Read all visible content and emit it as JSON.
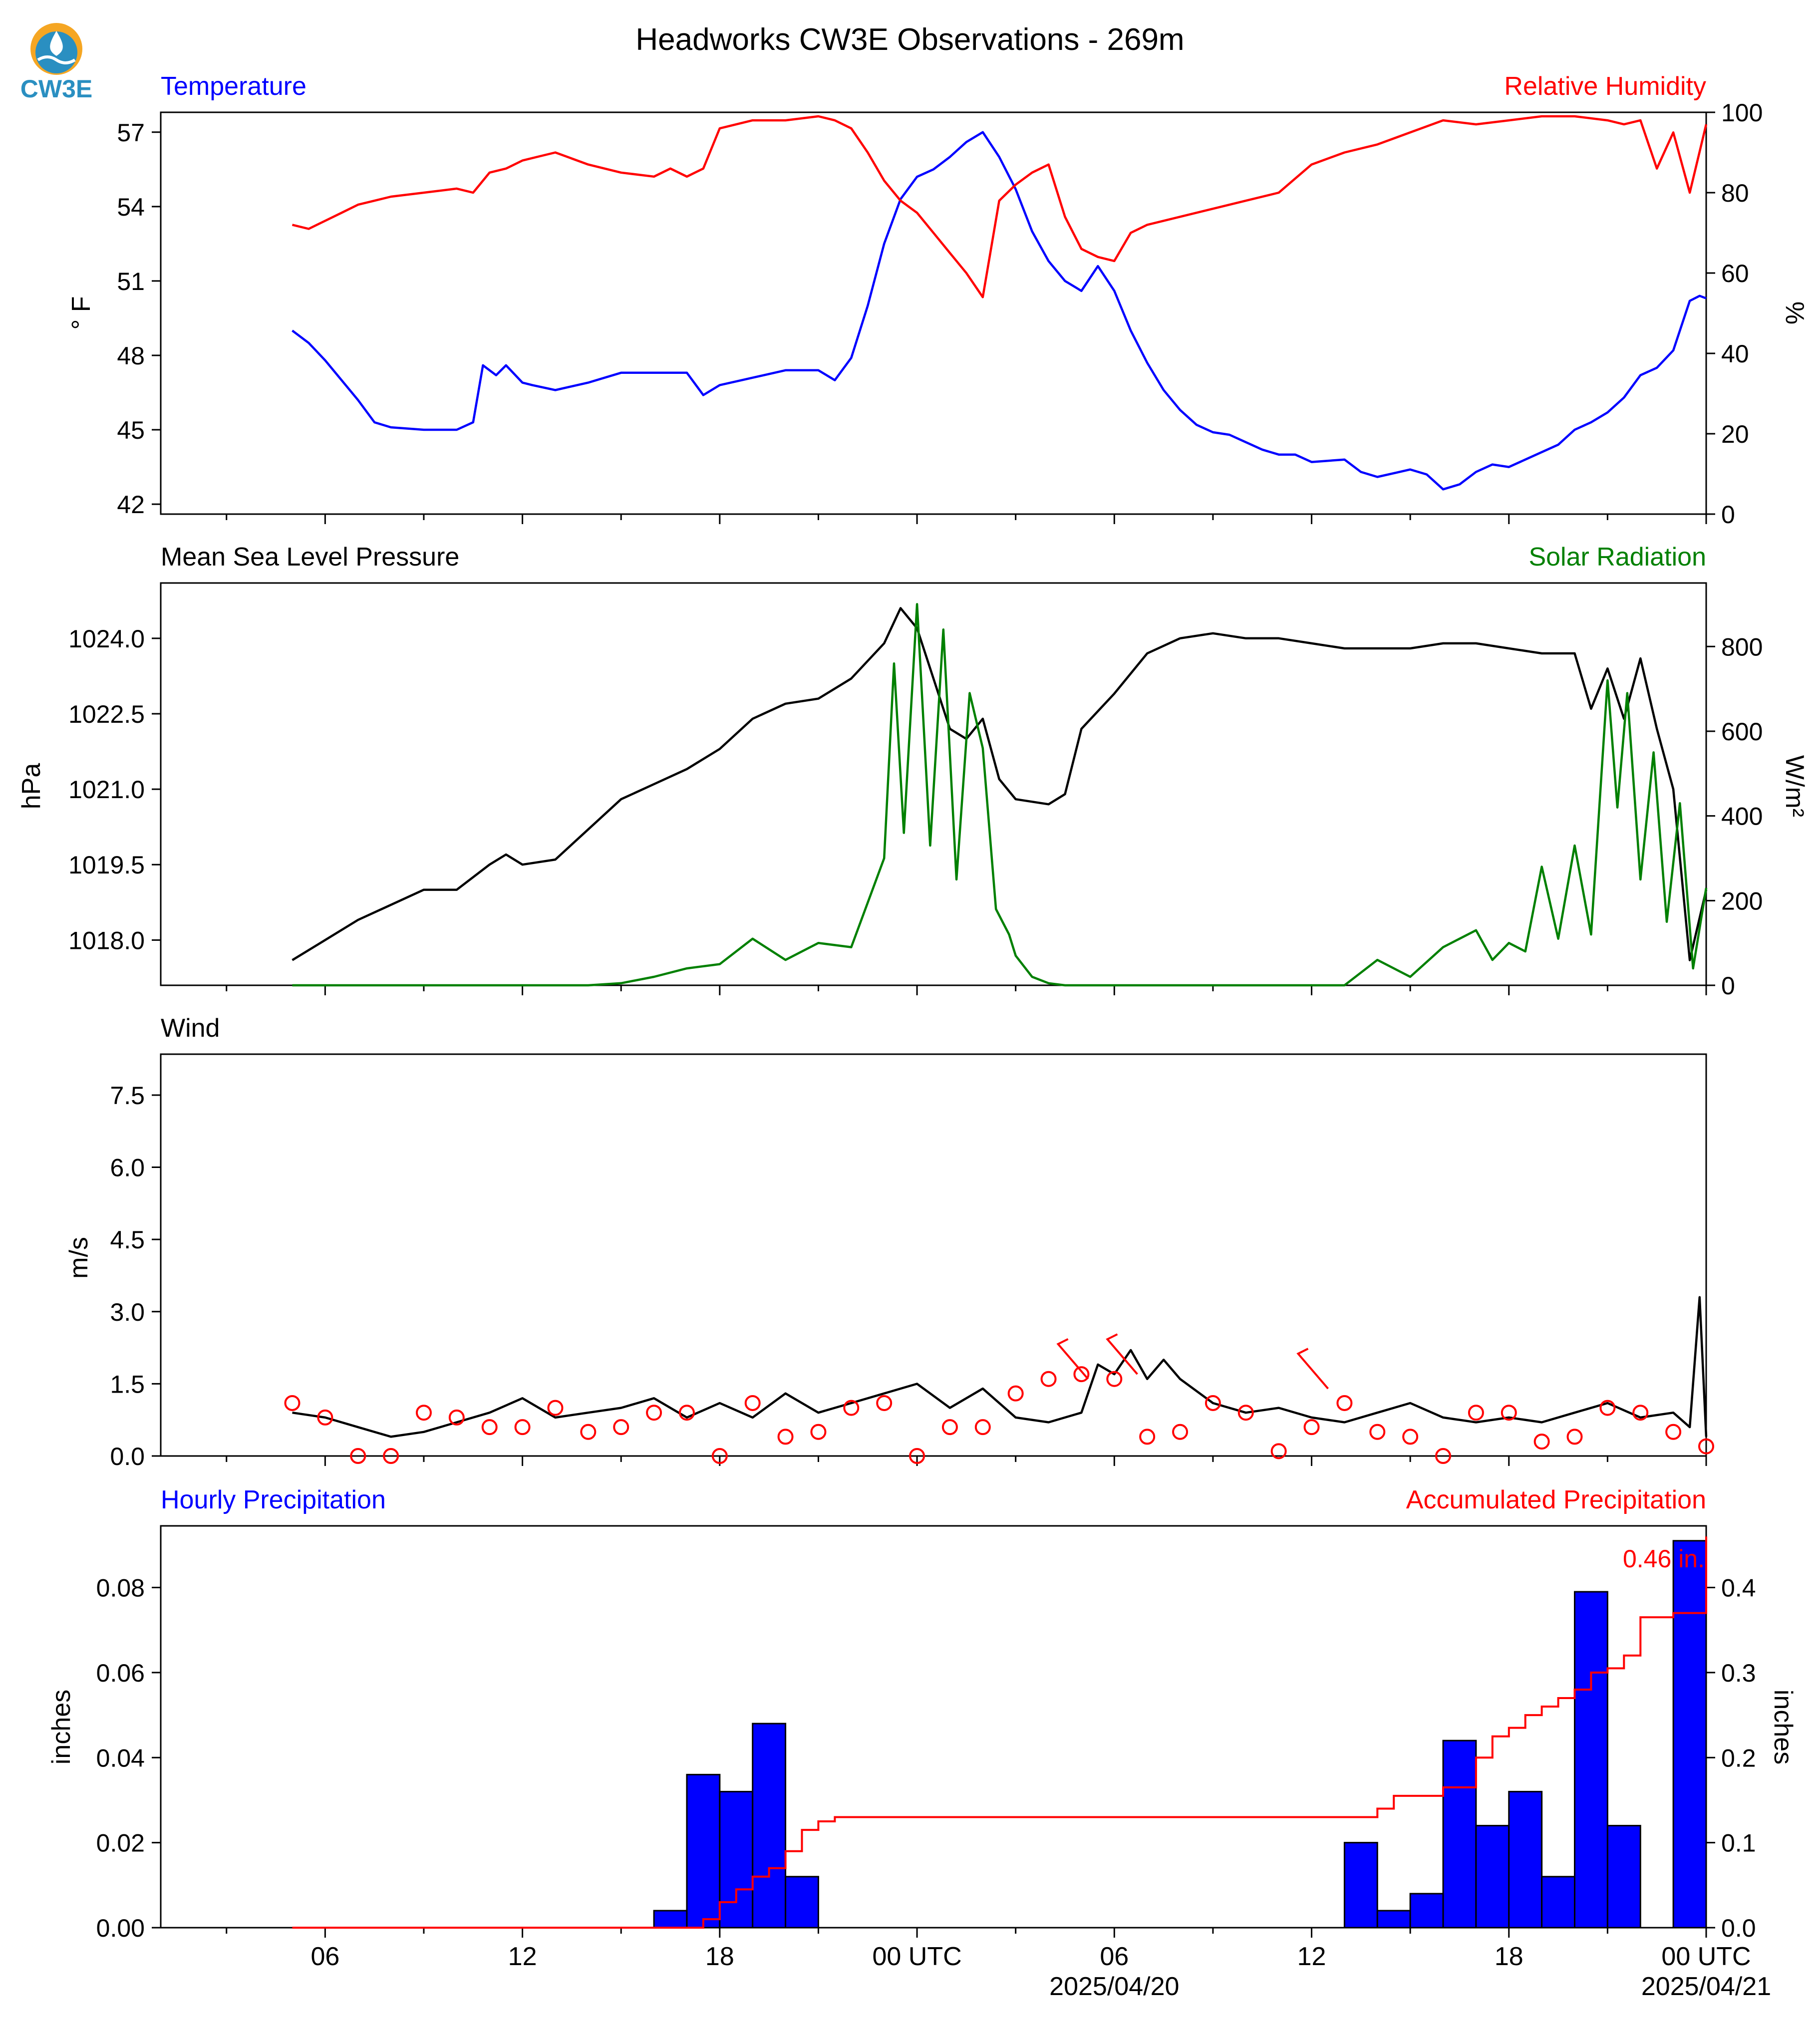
{
  "title": "Headworks CW3E Observations - 269m",
  "logo_text": "CW3E",
  "x_axis": {
    "tick_labels": [
      "06",
      "12",
      "18",
      "00 UTC",
      "06",
      "12",
      "18",
      "00 UTC"
    ],
    "date_labels": [
      "2025/04/20",
      "2025/04/21"
    ],
    "range_hours": [
      -5,
      42
    ]
  },
  "colors": {
    "temperature": "#0000ff",
    "humidity": "#ff0000",
    "pressure": "#000000",
    "solar": "#008000",
    "wind": "#000000",
    "wind_barb": "#ff0000",
    "hourly_precip": "#0000ff",
    "accumulated_precip": "#ff0000"
  },
  "chart_data": [
    {
      "type": "line",
      "left_title": "Temperature",
      "right_title": "Relative Humidity",
      "ylabel_left": "° F",
      "ylabel_right": "%",
      "ylim_left": [
        41.6,
        57.8
      ],
      "ylim_right": [
        0,
        100
      ],
      "yticks_left": [
        42,
        45,
        48,
        51,
        54,
        57
      ],
      "yticks_right": [
        0,
        20,
        40,
        60,
        80,
        100
      ],
      "grid": false,
      "series": [
        {
          "name": "Temperature",
          "axis": "left",
          "x": [
            -1.0,
            -0.5,
            0.0,
            0.5,
            1.0,
            1.5,
            2.0,
            3.0,
            4.0,
            4.5,
            4.8,
            5.2,
            5.5,
            6.0,
            6.3,
            7.0,
            8.0,
            9.0,
            10.0,
            11.0,
            11.5,
            12.0,
            13.0,
            14.0,
            15.0,
            15.5,
            16.0,
            16.5,
            17.0,
            17.5,
            18.0,
            18.5,
            19.0,
            19.5,
            20.0,
            20.5,
            21.0,
            21.5,
            22.0,
            22.5,
            23.0,
            23.5,
            24.0,
            24.5,
            25.0,
            25.5,
            26.0,
            26.5,
            27.0,
            27.5,
            28.0,
            28.5,
            29.0,
            29.5,
            30.0,
            31.0,
            31.5,
            32.0,
            33.0,
            33.5,
            34.0,
            34.5,
            35.0,
            35.5,
            36.0,
            36.5,
            37.0,
            37.5,
            38.0,
            38.5,
            39.0,
            39.5,
            40.0,
            40.5,
            41.0,
            41.5,
            41.8,
            42.0
          ],
          "values": [
            49.0,
            48.5,
            47.8,
            47.0,
            46.2,
            45.3,
            45.1,
            45.0,
            45.0,
            45.3,
            47.6,
            47.2,
            47.6,
            46.9,
            46.8,
            46.6,
            46.9,
            47.3,
            47.3,
            47.3,
            46.4,
            46.8,
            47.1,
            47.4,
            47.4,
            47.0,
            47.9,
            50.0,
            52.5,
            54.3,
            55.2,
            55.5,
            56.0,
            56.6,
            57.0,
            56.0,
            54.7,
            53.0,
            51.8,
            51.0,
            50.6,
            51.6,
            50.6,
            49.0,
            47.7,
            46.6,
            45.8,
            45.2,
            44.9,
            44.8,
            44.5,
            44.2,
            44.0,
            44.0,
            43.7,
            43.8,
            43.3,
            43.1,
            43.4,
            43.2,
            42.6,
            42.8,
            43.3,
            43.6,
            43.5,
            43.8,
            44.1,
            44.4,
            45.0,
            45.3,
            45.7,
            46.3,
            47.2,
            47.5,
            48.2,
            50.2,
            50.4,
            50.3
          ]
        },
        {
          "name": "Relative Humidity",
          "axis": "right",
          "x": [
            -1.0,
            -0.5,
            0.0,
            0.5,
            1.0,
            1.5,
            2.0,
            3.0,
            4.0,
            4.5,
            5.0,
            5.5,
            6.0,
            6.5,
            7.0,
            8.0,
            9.0,
            10.0,
            10.5,
            11.0,
            11.5,
            12.0,
            13.0,
            14.0,
            15.0,
            15.5,
            16.0,
            16.5,
            17.0,
            17.5,
            18.0,
            18.5,
            19.0,
            19.5,
            20.0,
            20.5,
            21.0,
            21.5,
            22.0,
            22.5,
            23.0,
            23.5,
            24.0,
            24.5,
            25.0,
            26.0,
            27.0,
            28.0,
            29.0,
            30.0,
            31.0,
            32.0,
            33.0,
            34.0,
            35.0,
            36.0,
            37.0,
            38.0,
            39.0,
            39.5,
            40.0,
            40.5,
            41.0,
            41.5,
            42.0
          ],
          "values": [
            72,
            71,
            73,
            75,
            77,
            78,
            79,
            80,
            81,
            80,
            85,
            86,
            88,
            89,
            90,
            87,
            85,
            84,
            86,
            84,
            86,
            96,
            98,
            98,
            99,
            98,
            96,
            90,
            83,
            78,
            75,
            70,
            65,
            60,
            54,
            78,
            82,
            85,
            87,
            74,
            66,
            64,
            63,
            70,
            72,
            74,
            76,
            78,
            80,
            87,
            90,
            92,
            95,
            98,
            97,
            98,
            99,
            99,
            98,
            97,
            98,
            86,
            95,
            80,
            97
          ]
        }
      ]
    },
    {
      "type": "line",
      "left_title": "Mean Sea Level Pressure",
      "right_title": "Solar Radiation",
      "ylabel_left": "hPa",
      "ylabel_right": "W/m²",
      "ylim_left": [
        1017.1,
        1025.1
      ],
      "ylim_right": [
        0,
        950
      ],
      "yticks_left": [
        1018.0,
        1019.5,
        1021.0,
        1022.5,
        1024.0
      ],
      "yticks_right": [
        0,
        200,
        400,
        600,
        800
      ],
      "grid": false,
      "series": [
        {
          "name": "Mean Sea Level Pressure",
          "axis": "left",
          "x": [
            -1.0,
            0.0,
            1.0,
            2.0,
            3.0,
            4.0,
            5.0,
            5.5,
            6.0,
            7.0,
            8.0,
            9.0,
            10.0,
            11.0,
            12.0,
            13.0,
            14.0,
            15.0,
            16.0,
            17.0,
            17.5,
            18.0,
            18.5,
            19.0,
            19.5,
            20.0,
            20.5,
            21.0,
            22.0,
            22.5,
            23.0,
            24.0,
            25.0,
            26.0,
            27.0,
            28.0,
            29.0,
            30.0,
            31.0,
            32.0,
            33.0,
            34.0,
            35.0,
            36.0,
            37.0,
            38.0,
            38.5,
            39.0,
            39.5,
            40.0,
            40.5,
            41.0,
            41.5,
            42.0
          ],
          "values": [
            1017.6,
            1018.0,
            1018.4,
            1018.7,
            1019.0,
            1019.0,
            1019.5,
            1019.7,
            1019.5,
            1019.6,
            1020.2,
            1020.8,
            1021.1,
            1021.4,
            1021.8,
            1022.4,
            1022.7,
            1022.8,
            1023.2,
            1023.9,
            1024.6,
            1024.2,
            1023.2,
            1022.2,
            1022.0,
            1022.4,
            1021.2,
            1020.8,
            1020.7,
            1020.9,
            1022.2,
            1022.9,
            1023.7,
            1024.0,
            1024.1,
            1024.0,
            1024.0,
            1023.9,
            1023.8,
            1023.8,
            1023.8,
            1023.9,
            1023.9,
            1023.8,
            1023.7,
            1023.7,
            1022.6,
            1023.4,
            1022.4,
            1023.6,
            1022.2,
            1021.0,
            1017.6,
            1019.0
          ]
        },
        {
          "name": "Solar Radiation",
          "axis": "right",
          "x": [
            -1.0,
            6.0,
            8.0,
            9.0,
            10.0,
            11.0,
            12.0,
            13.0,
            14.0,
            15.0,
            16.0,
            17.0,
            17.3,
            17.6,
            18.0,
            18.4,
            18.8,
            19.2,
            19.6,
            20.0,
            20.4,
            20.8,
            21.0,
            21.5,
            22.0,
            22.5,
            23.0,
            24.0,
            25.0,
            30.0,
            31.0,
            32.0,
            33.0,
            34.0,
            35.0,
            35.5,
            36.0,
            36.5,
            37.0,
            37.5,
            38.0,
            38.5,
            39.0,
            39.3,
            39.6,
            40.0,
            40.4,
            40.8,
            41.2,
            41.6,
            42.0
          ],
          "values": [
            0,
            0,
            0,
            5,
            20,
            40,
            50,
            110,
            60,
            100,
            90,
            300,
            760,
            360,
            900,
            330,
            840,
            250,
            690,
            560,
            180,
            120,
            70,
            20,
            5,
            0,
            0,
            0,
            0,
            0,
            0,
            60,
            20,
            90,
            130,
            60,
            100,
            80,
            280,
            110,
            330,
            120,
            720,
            420,
            690,
            250,
            550,
            150,
            430,
            40,
            230
          ]
        }
      ]
    },
    {
      "type": "line",
      "left_title": "Wind",
      "ylabel_left": "m/s",
      "ylim_left": [
        0,
        8.35
      ],
      "yticks_left": [
        0.0,
        1.5,
        3.0,
        4.5,
        6.0,
        7.5
      ],
      "grid": false,
      "series": [
        {
          "name": "Wind",
          "axis": "left",
          "x": [
            -1.0,
            0.0,
            1.0,
            2.0,
            3.0,
            4.0,
            5.0,
            6.0,
            7.0,
            8.0,
            9.0,
            10.0,
            11.0,
            12.0,
            13.0,
            14.0,
            15.0,
            16.0,
            17.0,
            18.0,
            19.0,
            20.0,
            21.0,
            22.0,
            23.0,
            23.5,
            24.0,
            24.5,
            25.0,
            25.5,
            26.0,
            27.0,
            28.0,
            29.0,
            30.0,
            31.0,
            32.0,
            33.0,
            34.0,
            35.0,
            36.0,
            37.0,
            38.0,
            39.0,
            40.0,
            41.0,
            41.5,
            41.8,
            42.0
          ],
          "values": [
            0.9,
            0.8,
            0.6,
            0.4,
            0.5,
            0.7,
            0.9,
            1.2,
            0.8,
            0.9,
            1.0,
            1.2,
            0.8,
            1.1,
            0.8,
            1.3,
            0.9,
            1.1,
            1.3,
            1.5,
            1.0,
            1.4,
            0.8,
            0.7,
            0.9,
            1.9,
            1.7,
            2.2,
            1.6,
            2.0,
            1.6,
            1.1,
            0.9,
            1.0,
            0.8,
            0.7,
            0.9,
            1.1,
            0.8,
            0.7,
            0.8,
            0.7,
            0.9,
            1.1,
            0.8,
            0.9,
            0.6,
            3.3,
            0.4
          ]
        }
      ],
      "wind_obs_hours": [
        -1,
        0,
        1,
        2,
        3,
        4,
        5,
        6,
        7,
        8,
        9,
        10,
        11,
        12,
        13,
        14,
        15,
        16,
        17,
        18,
        19,
        20,
        21,
        22,
        23,
        24,
        25,
        26,
        27,
        28,
        29,
        30,
        31,
        32,
        33,
        34,
        35,
        36,
        37,
        38,
        39,
        40,
        41,
        42
      ],
      "wind_obs_speed": [
        1.1,
        0.8,
        0.0,
        0.0,
        0.9,
        0.8,
        0.6,
        0.6,
        1.0,
        0.5,
        0.6,
        0.9,
        0.9,
        0.0,
        1.1,
        0.4,
        0.5,
        1.0,
        1.1,
        0.0,
        0.6,
        0.6,
        1.3,
        1.6,
        1.7,
        1.6,
        0.4,
        0.5,
        1.1,
        0.9,
        0.1,
        0.6,
        1.1,
        0.5,
        0.4,
        0.0,
        0.9,
        0.9,
        0.3,
        0.4,
        1.0,
        0.9,
        0.5,
        0.2
      ],
      "wind_barb_hours": [
        23.2,
        24.7,
        30.5
      ],
      "wind_barb_speed": [
        1.6,
        1.7,
        1.4
      ]
    },
    {
      "type": "bar",
      "left_title": "Hourly Precipitation",
      "right_title": "Accumulated Precipitation",
      "ylabel_left": "inches",
      "ylabel_right": "inches",
      "ylim_left": [
        0,
        0.0945
      ],
      "ylim_right": [
        0,
        0.4725
      ],
      "yticks_left": [
        0.0,
        0.02,
        0.04,
        0.06,
        0.08
      ],
      "yticks_right": [
        0.0,
        0.1,
        0.2,
        0.3,
        0.4
      ],
      "ytick_labels_left": [
        "0.00",
        "0.02",
        "0.04",
        "0.06",
        "0.08"
      ],
      "ytick_labels_right": [
        "0.0",
        "0.1",
        "0.2",
        "0.3",
        "0.4"
      ],
      "annotation": "0.46 in.",
      "grid": false,
      "bars": {
        "name": "Hourly Precipitation",
        "x": [
          11,
          12,
          13,
          14,
          15,
          32,
          33,
          34,
          35,
          36,
          37,
          38,
          39,
          40,
          41,
          42
        ],
        "values": [
          0.004,
          0.036,
          0.032,
          0.048,
          0.012,
          0.02,
          0.004,
          0.008,
          0.044,
          0.024,
          0.032,
          0.012,
          0.079,
          0.024,
          0.0,
          0.091
        ]
      },
      "accumulated": {
        "name": "Accumulated Precipitation",
        "x": [
          -1,
          10.0,
          11.0,
          11.5,
          12.0,
          12.5,
          13.0,
          13.5,
          14.0,
          14.5,
          15.0,
          15.5,
          16.0,
          31.0,
          32.0,
          32.5,
          33.0,
          34.0,
          35.0,
          35.5,
          36.0,
          36.5,
          37.0,
          37.5,
          38.0,
          38.5,
          39.0,
          39.5,
          40.0,
          41.0,
          41.5,
          41.8,
          42.0
        ],
        "values": [
          0,
          0,
          0.0,
          0.01,
          0.03,
          0.045,
          0.06,
          0.07,
          0.09,
          0.115,
          0.125,
          0.13,
          0.13,
          0.13,
          0.14,
          0.155,
          0.155,
          0.165,
          0.2,
          0.225,
          0.235,
          0.25,
          0.26,
          0.27,
          0.28,
          0.3,
          0.305,
          0.32,
          0.365,
          0.37,
          0.37,
          0.37,
          0.46
        ]
      }
    }
  ]
}
